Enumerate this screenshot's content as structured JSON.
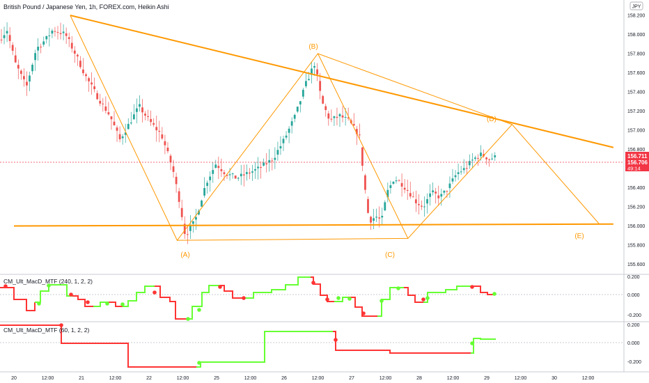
{
  "header": {
    "title": "British Pound / Japanese Yen, 1h, FOREX.com, Heikin Ashi",
    "currency_badge": "JPY"
  },
  "price_axis": {
    "labels": [
      "158.200",
      "158.000",
      "157.800",
      "157.600",
      "157.400",
      "157.200",
      "157.000",
      "156.800",
      "156.600",
      "156.400",
      "156.200",
      "156.000",
      "155.800",
      "155.600"
    ],
    "last_price": "156.711",
    "second_price": "156.706",
    "countdown": "49:14"
  },
  "time_axis": {
    "labels": [
      "20",
      "12:00",
      "21",
      "12:00",
      "22",
      "12:00",
      "25",
      "12:00",
      "26",
      "12:00",
      "27",
      "12:00",
      "28",
      "12:00",
      "29",
      "12:00",
      "30",
      "12:00"
    ]
  },
  "pattern_labels": {
    "a": "(A)",
    "b": "(B)",
    "c": "(C)",
    "d": "(D)",
    "e": "(E)"
  },
  "indicator_1": {
    "name": "CM_Ult_MacD_MTF (240, 1, 2, 2)",
    "axis": [
      "0.200",
      "0.000",
      "-0.200"
    ]
  },
  "indicator_2": {
    "name": "CM_Ult_MacD_MTF (60, 1, 2, 2)",
    "axis": [
      "0.200",
      "0.000",
      "-0.200"
    ]
  },
  "colors": {
    "bull": "#26a69a",
    "bear": "#ef5350",
    "pattern": "#ff9800",
    "macd_up": "#66ff33",
    "macd_down": "#ff3333",
    "price_tag": "#f23645"
  },
  "chart_data": [
    {
      "type": "candlestick",
      "title": "British Pound / Japanese Yen, 1h, FOREX.com, Heikin Ashi",
      "ylim": [
        155.55,
        158.25
      ],
      "x_ticks": [
        "20",
        "12:00",
        "21",
        "12:00",
        "22",
        "12:00",
        "25",
        "12:00",
        "26",
        "12:00",
        "27",
        "12:00",
        "28",
        "12:00",
        "29",
        "12:00",
        "30",
        "12:00"
      ],
      "pattern_points": [
        {
          "label": "(A)",
          "x": "22 10:00",
          "y": 155.85
        },
        {
          "label": "(B)",
          "x": "26 12:00",
          "y": 157.8
        },
        {
          "label": "(C)",
          "x": "27 20:00",
          "y": 155.87
        },
        {
          "label": "(D)",
          "x": "29 09:00",
          "y": 157.06
        },
        {
          "label": "(E)",
          "x": "30 16:00",
          "y": 156.02
        }
      ],
      "trendlines": [
        {
          "from": {
            "x": "20 20:00",
            "y": 158.2
          },
          "to": {
            "x": "30 21:00",
            "y": 156.82
          }
        },
        {
          "from": {
            "x": "20 00:00",
            "y": 156.0
          },
          "to": {
            "x": "30 21:00",
            "y": 156.02
          }
        }
      ],
      "last_price": 156.711
    },
    {
      "type": "line",
      "title": "CM_Ult_MacD_MTF (240, 1, 2, 2)",
      "ylim": [
        -0.28,
        0.2
      ]
    },
    {
      "type": "line",
      "title": "CM_Ult_MacD_MTF (60, 1, 2, 2)",
      "ylim": [
        -0.28,
        0.2
      ]
    }
  ]
}
